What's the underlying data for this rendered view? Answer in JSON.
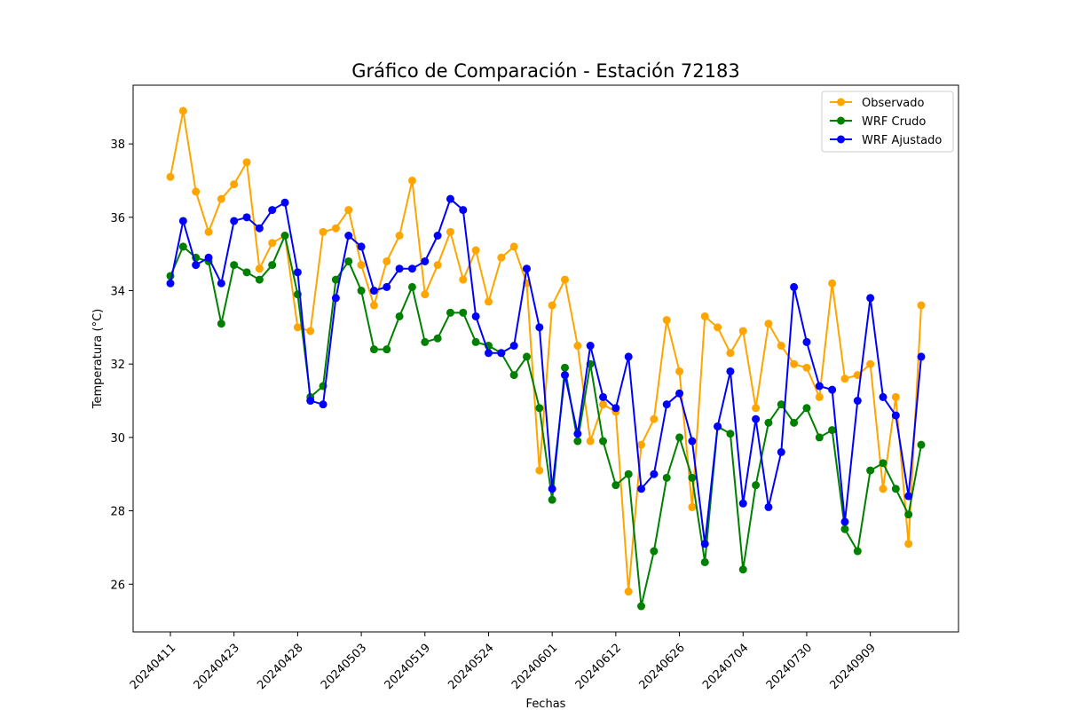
{
  "chart_data": {
    "type": "line",
    "title": "Gráfico de Comparación - Estación 72183",
    "xlabel": "Fechas",
    "ylabel": "Temperatura (°C)",
    "ylim": [
      24.7,
      39.6
    ],
    "yticks": [
      26,
      28,
      30,
      32,
      34,
      36,
      38
    ],
    "grid": false,
    "legend_position": "top-right",
    "x_tick_labels": [
      "20240411",
      "20240423",
      "20240428",
      "20240503",
      "20240519",
      "20240524",
      "20240601",
      "20240612",
      "20240626",
      "20240704",
      "20240730",
      "20240909"
    ],
    "x_tick_every": 5,
    "x_tick_start_index": 0,
    "n_points": 60,
    "series": [
      {
        "name": "Observado",
        "color": "#FFA500",
        "values": [
          37.1,
          38.9,
          36.7,
          35.6,
          36.5,
          36.9,
          37.5,
          34.6,
          35.3,
          35.5,
          33.0,
          32.9,
          35.6,
          35.7,
          36.2,
          34.7,
          33.6,
          34.8,
          35.5,
          37.0,
          33.9,
          34.7,
          35.6,
          34.3,
          35.1,
          33.7,
          34.9,
          35.2,
          34.2,
          29.1,
          33.6,
          34.3,
          32.5,
          29.9,
          30.9,
          30.7,
          25.8,
          29.8,
          30.5,
          33.2,
          31.8,
          28.1,
          33.3,
          33.0,
          32.3,
          32.9,
          30.8,
          33.1,
          32.5,
          32.0,
          31.9,
          31.1,
          34.2,
          31.6,
          31.7,
          32.0,
          28.6,
          31.1,
          27.1,
          33.6
        ]
      },
      {
        "name": "WRF Crudo",
        "color": "#008000",
        "values": [
          34.4,
          35.2,
          34.9,
          34.8,
          33.1,
          34.7,
          34.5,
          34.3,
          34.7,
          35.5,
          33.9,
          31.1,
          31.4,
          34.3,
          34.8,
          34.0,
          32.4,
          32.4,
          33.3,
          34.1,
          32.6,
          32.7,
          33.4,
          33.4,
          32.6,
          32.5,
          32.3,
          31.7,
          32.2,
          30.8,
          28.3,
          31.9,
          29.9,
          32.0,
          29.9,
          28.7,
          29.0,
          25.4,
          26.9,
          28.9,
          30.0,
          28.9,
          26.6,
          30.3,
          30.1,
          26.4,
          28.7,
          30.4,
          30.9,
          30.4,
          30.8,
          30.0,
          30.2,
          27.5,
          26.9,
          29.1,
          29.3,
          28.6,
          27.9,
          29.8
        ]
      },
      {
        "name": "WRF Ajustado",
        "color": "#0000FF",
        "values": [
          34.2,
          35.9,
          34.7,
          34.9,
          34.2,
          35.9,
          36.0,
          35.7,
          36.2,
          36.4,
          34.5,
          31.0,
          30.9,
          33.8,
          35.5,
          35.2,
          34.0,
          34.1,
          34.6,
          34.6,
          34.8,
          35.5,
          36.5,
          36.2,
          33.3,
          32.3,
          32.3,
          32.5,
          34.6,
          33.0,
          28.6,
          31.7,
          30.1,
          32.5,
          31.1,
          30.8,
          32.2,
          28.6,
          29.0,
          30.9,
          31.2,
          29.9,
          27.1,
          30.3,
          31.8,
          28.2,
          30.5,
          28.1,
          29.6,
          34.1,
          32.6,
          31.4,
          31.3,
          27.7,
          31.0,
          33.8,
          31.1,
          30.6,
          28.4,
          32.2
        ]
      }
    ]
  }
}
